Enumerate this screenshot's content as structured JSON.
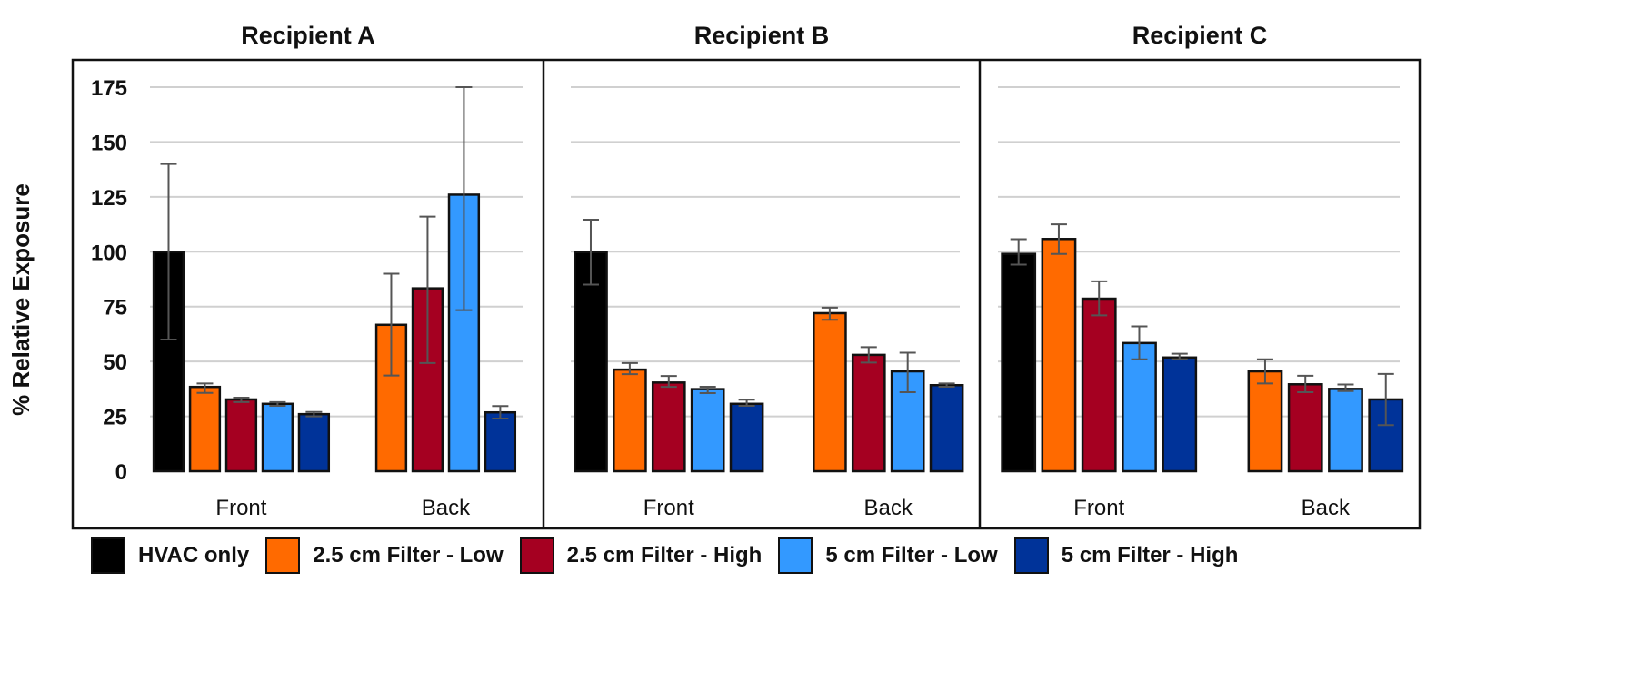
{
  "chart_data": {
    "type": "bar",
    "ylabel": "% Relative Exposure",
    "ylim": [
      0,
      175
    ],
    "yticks": [
      "0",
      "25",
      "50",
      "75",
      "100",
      "125",
      "150",
      "175"
    ],
    "grid": true,
    "legend_position": "bottom",
    "categories": [
      "Front",
      "Back"
    ],
    "series_meta": [
      {
        "name": "HVAC only",
        "color": "#000000"
      },
      {
        "name": "2.5 cm Filter - Low",
        "color": "#FF6A00"
      },
      {
        "name": "2.5 cm Filter - High",
        "color": "#A50021"
      },
      {
        "name": "5 cm Filter - Low",
        "color": "#3399FF"
      },
      {
        "name": "5 cm Filter - High",
        "color": "#003399"
      }
    ],
    "panels": [
      {
        "title": "Recipient A",
        "values": [
          [
            100,
            38.4,
            32.7,
            30.7,
            26
          ],
          [
            null,
            66.7,
            83.3,
            126,
            26.8
          ]
        ],
        "err_low": [
          [
            60,
            35.7,
            31.5,
            29.8,
            25
          ],
          [
            null,
            43.6,
            49.3,
            73.4,
            24
          ]
        ],
        "err_high": [
          [
            140,
            40,
            33.5,
            31.5,
            27
          ],
          [
            null,
            90,
            116,
            175,
            29.7
          ]
        ]
      },
      {
        "title": "Recipient B",
        "values": [
          [
            99.8,
            46.3,
            40.4,
            37.4,
            30.7
          ],
          [
            null,
            72,
            53,
            45.5,
            39.2
          ]
        ],
        "err_low": [
          [
            85,
            44.2,
            38.4,
            35.6,
            29.8
          ],
          [
            null,
            69,
            49.5,
            36,
            38.5
          ]
        ],
        "err_high": [
          [
            114.6,
            49.3,
            43.4,
            38.5,
            32.6
          ],
          [
            null,
            74.5,
            56.5,
            54,
            40
          ]
        ]
      },
      {
        "title": "Recipient C",
        "values": [
          [
            99,
            105.8,
            78.6,
            58.4,
            51.8
          ],
          [
            null,
            45.5,
            39.6,
            37.5,
            32.7
          ]
        ],
        "err_low": [
          [
            94.1,
            99,
            71,
            51,
            51
          ],
          [
            null,
            40,
            36,
            36.5,
            21
          ]
        ],
        "err_high": [
          [
            105.7,
            112.5,
            86.5,
            66,
            53.5
          ],
          [
            null,
            51,
            43.5,
            39.5,
            44.3
          ]
        ]
      }
    ]
  }
}
